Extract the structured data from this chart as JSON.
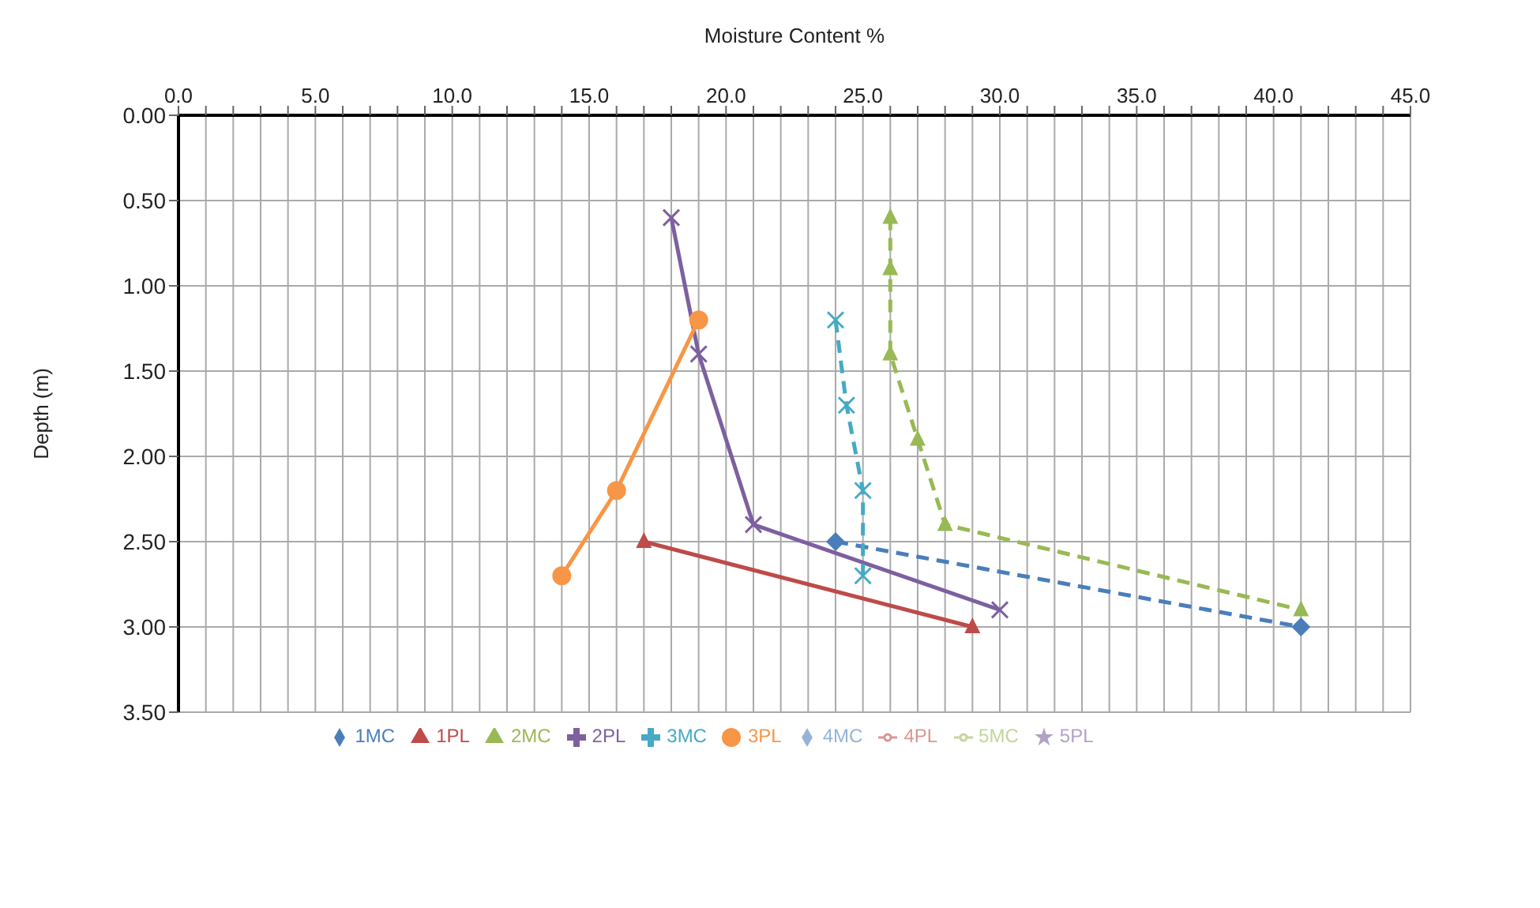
{
  "chart_data": {
    "type": "line",
    "xlabel": "Moisture Content %",
    "ylabel": "Depth (m)",
    "xlim": [
      0,
      45
    ],
    "ylim": [
      3.5,
      0
    ],
    "xticks": [
      {
        "value": 0,
        "label": "0.0"
      },
      {
        "value": 1,
        "label": null
      },
      {
        "value": 2,
        "label": null
      },
      {
        "value": 3,
        "label": null
      },
      {
        "value": 4,
        "label": null
      },
      {
        "value": 5,
        "label": "5.0"
      },
      {
        "value": 6,
        "label": null
      },
      {
        "value": 7,
        "label": null
      },
      {
        "value": 8,
        "label": null
      },
      {
        "value": 9,
        "label": null
      },
      {
        "value": 10,
        "label": "10.0"
      },
      {
        "value": 11,
        "label": null
      },
      {
        "value": 12,
        "label": null
      },
      {
        "value": 13,
        "label": null
      },
      {
        "value": 14,
        "label": null
      },
      {
        "value": 15,
        "label": "15.0"
      },
      {
        "value": 16,
        "label": null
      },
      {
        "value": 17,
        "label": null
      },
      {
        "value": 18,
        "label": null
      },
      {
        "value": 19,
        "label": null
      },
      {
        "value": 20,
        "label": "20.0"
      },
      {
        "value": 21,
        "label": null
      },
      {
        "value": 22,
        "label": null
      },
      {
        "value": 23,
        "label": null
      },
      {
        "value": 24,
        "label": null
      },
      {
        "value": 25,
        "label": "25.0"
      },
      {
        "value": 26,
        "label": null
      },
      {
        "value": 27,
        "label": null
      },
      {
        "value": 28,
        "label": null
      },
      {
        "value": 29,
        "label": null
      },
      {
        "value": 30,
        "label": "30.0"
      },
      {
        "value": 31,
        "label": null
      },
      {
        "value": 32,
        "label": null
      },
      {
        "value": 33,
        "label": null
      },
      {
        "value": 34,
        "label": null
      },
      {
        "value": 35,
        "label": "35.0"
      },
      {
        "value": 36,
        "label": null
      },
      {
        "value": 37,
        "label": null
      },
      {
        "value": 38,
        "label": null
      },
      {
        "value": 39,
        "label": null
      },
      {
        "value": 40,
        "label": "40.0"
      },
      {
        "value": 41,
        "label": null
      },
      {
        "value": 42,
        "label": null
      },
      {
        "value": 43,
        "label": null
      },
      {
        "value": 44,
        "label": null
      },
      {
        "value": 45,
        "label": "45.0"
      }
    ],
    "yticks": [
      {
        "value": 0,
        "label": "0.00"
      },
      {
        "value": 0.5,
        "label": "0.50"
      },
      {
        "value": 1,
        "label": "1.00"
      },
      {
        "value": 1.5,
        "label": "1.50"
      },
      {
        "value": 2,
        "label": "2.00"
      },
      {
        "value": 2.5,
        "label": "2.50"
      },
      {
        "value": 3,
        "label": "3.00"
      },
      {
        "value": 3.5,
        "label": "3.50"
      }
    ],
    "grid": true,
    "legend": "bottom",
    "series": [
      {
        "name": "1MC",
        "color": "#4a7ebb",
        "marker": "diamond",
        "line_style": "dashed",
        "x": [
          24,
          41
        ],
        "values": [
          2.5,
          3.0
        ]
      },
      {
        "name": "1PL",
        "color": "#be4b48",
        "marker": "triangle",
        "line_style": "solid",
        "x": [
          17,
          29
        ],
        "values": [
          2.5,
          3.0
        ]
      },
      {
        "name": "2MC",
        "color": "#98b954",
        "marker": "triangle",
        "line_style": "dashed",
        "x": [
          26,
          26,
          26,
          27,
          28,
          41
        ],
        "values": [
          0.6,
          0.9,
          1.4,
          1.9,
          2.4,
          2.9
        ]
      },
      {
        "name": "2PL",
        "color": "#7d60a0",
        "marker": "cross",
        "line_style": "solid",
        "x": [
          18,
          19,
          21,
          30
        ],
        "values": [
          0.6,
          1.4,
          2.4,
          2.9
        ]
      },
      {
        "name": "3MC",
        "color": "#46aac5",
        "marker": "cross",
        "line_style": "dashed",
        "x": [
          24,
          24.4,
          25,
          25
        ],
        "values": [
          1.2,
          1.7,
          2.2,
          2.7
        ]
      },
      {
        "name": "3PL",
        "color": "#f79646",
        "marker": "circle",
        "line_style": "solid",
        "x": [
          19,
          16,
          14
        ],
        "values": [
          1.2,
          2.2,
          2.7
        ]
      },
      {
        "name": "4MC",
        "color": "#95b3d7",
        "marker": "diamond",
        "line_style": "dashed"
      },
      {
        "name": "4PL",
        "color": "#d99694",
        "marker": "none",
        "line_style": "solid"
      },
      {
        "name": "5MC",
        "color": "#c3d69b",
        "marker": "none",
        "line_style": "solid"
      },
      {
        "name": "5PL",
        "color": "#b3a2c7",
        "marker": "star",
        "line_style": "solid"
      }
    ]
  }
}
